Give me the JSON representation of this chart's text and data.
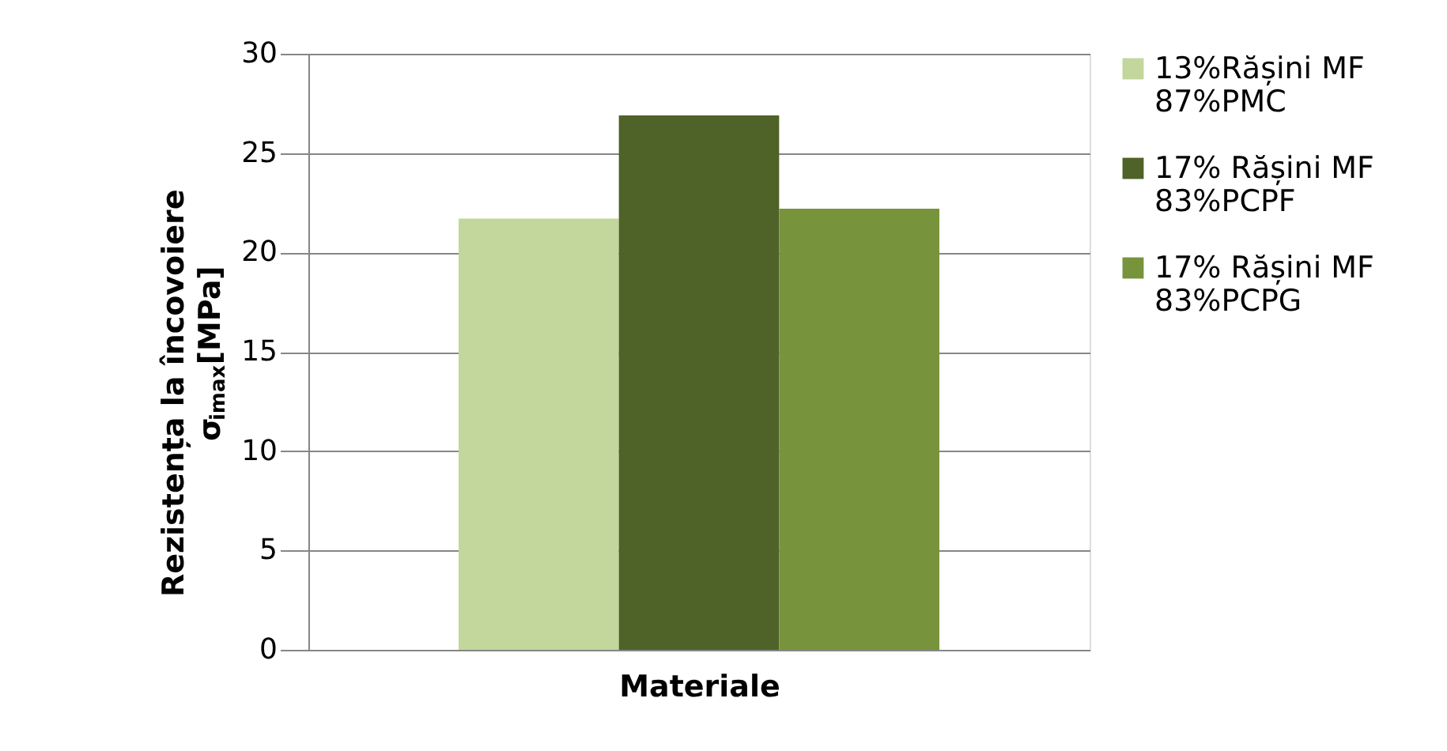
{
  "chart_data": {
    "type": "bar",
    "xlabel": "Materiale",
    "ylabel": [
      "Rezistența la încovoiere",
      "σ$_{imax}$[MPa]"
    ],
    "categories": [
      null
    ],
    "series": [
      {
        "name": "13%Rășini MF 87%PMC",
        "color": "#c3d69b",
        "values": [
          21.7
        ]
      },
      {
        "name": "17% Rășini MF 83%PCPF",
        "color": "#4f6228",
        "values": [
          26.9
        ]
      },
      {
        "name": "17% Rășini MF 83%PCPG",
        "color": "#77933c",
        "values": [
          22.2
        ]
      }
    ],
    "ylim": [
      0,
      30
    ],
    "yticks": [
      0,
      5,
      10,
      15,
      20,
      25,
      30
    ],
    "grid": "y",
    "legend": "right"
  }
}
